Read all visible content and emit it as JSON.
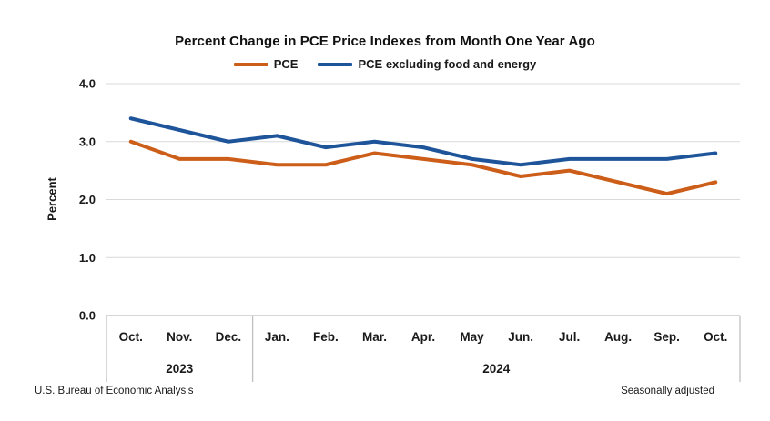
{
  "header": {
    "title": "Percent Change in PCE Price Indexes from Month One Year Ago"
  },
  "legend": [
    {
      "label": "PCE",
      "color": "#CC5E1A"
    },
    {
      "label": "PCE excluding food and energy",
      "color": "#1E5499"
    }
  ],
  "y_axis": {
    "title": "Percent"
  },
  "footer": {
    "source": "U.S. Bureau of Economic Analysis",
    "note": "Seasonally adjusted"
  },
  "chart_data": {
    "type": "line",
    "title": "Percent Change in PCE Price Indexes from Month One Year Ago",
    "xlabel": "",
    "ylabel": "Percent",
    "ylim": [
      0.0,
      4.0
    ],
    "yticks": [
      0.0,
      1.0,
      2.0,
      3.0,
      4.0
    ],
    "grid": true,
    "grid_color": "#D9D9D9",
    "axis_color": "#BFBFBF",
    "legend_position": "top",
    "categories": [
      "Oct.",
      "Nov.",
      "Dec.",
      "Jan.",
      "Feb.",
      "Mar.",
      "Apr.",
      "May",
      "Jun.",
      "Jul.",
      "Aug.",
      "Sep.",
      "Oct."
    ],
    "year_groups": [
      {
        "label": "2023",
        "count": 3
      },
      {
        "label": "2024",
        "count": 10
      }
    ],
    "series": [
      {
        "id": "pce",
        "name": "PCE",
        "color": "#CC5E1A",
        "values": [
          3.0,
          2.7,
          2.7,
          2.6,
          2.6,
          2.8,
          2.7,
          2.6,
          2.4,
          2.5,
          2.3,
          2.1,
          2.3
        ]
      },
      {
        "id": "pce-excluding-food-and-energy",
        "name": "PCE excluding food and energy",
        "color": "#1E5499",
        "values": [
          3.4,
          3.2,
          3.0,
          3.1,
          2.9,
          3.0,
          2.9,
          2.7,
          2.6,
          2.7,
          2.7,
          2.7,
          2.8
        ]
      }
    ],
    "source_note": "U.S. Bureau of Economic Analysis",
    "adjustment_note": "Seasonally adjusted"
  }
}
